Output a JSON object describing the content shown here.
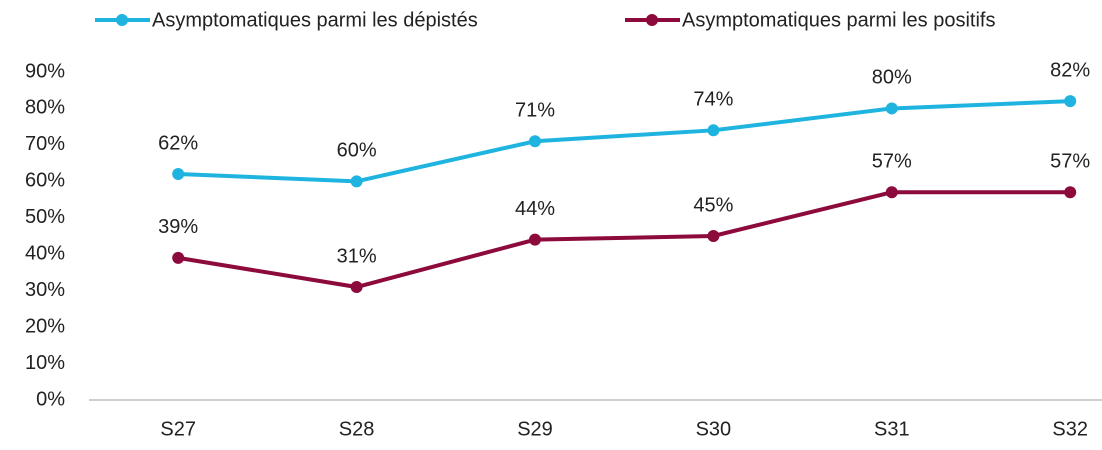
{
  "chart_data": {
    "type": "line",
    "categories": [
      "S27",
      "S28",
      "S29",
      "S30",
      "S31",
      "S32"
    ],
    "series": [
      {
        "name": "Asymptomatiques parmi les dépistés",
        "color": "#1fb4e0",
        "values": [
          62,
          60,
          71,
          74,
          80,
          82
        ],
        "value_labels": [
          "62%",
          "60%",
          "71%",
          "74%",
          "80%",
          "82%"
        ]
      },
      {
        "name": "Asymptomatiques parmi les positifs",
        "color": "#8c0a3c",
        "values": [
          39,
          31,
          44,
          45,
          57,
          57
        ],
        "value_labels": [
          "39%",
          "31%",
          "44%",
          "45%",
          "57%",
          "57%"
        ]
      }
    ],
    "ylim": [
      0,
      90
    ],
    "yticks": [
      {
        "value": 0,
        "label": "0%"
      },
      {
        "value": 10,
        "label": "10%"
      },
      {
        "value": 20,
        "label": "20%"
      },
      {
        "value": 30,
        "label": "30%"
      },
      {
        "value": 40,
        "label": "40%"
      },
      {
        "value": 50,
        "label": "50%"
      },
      {
        "value": 60,
        "label": "60%"
      },
      {
        "value": 70,
        "label": "70%"
      },
      {
        "value": 80,
        "label": "80%"
      },
      {
        "value": 90,
        "label": "90%"
      }
    ],
    "grid": false,
    "legend": "top"
  }
}
